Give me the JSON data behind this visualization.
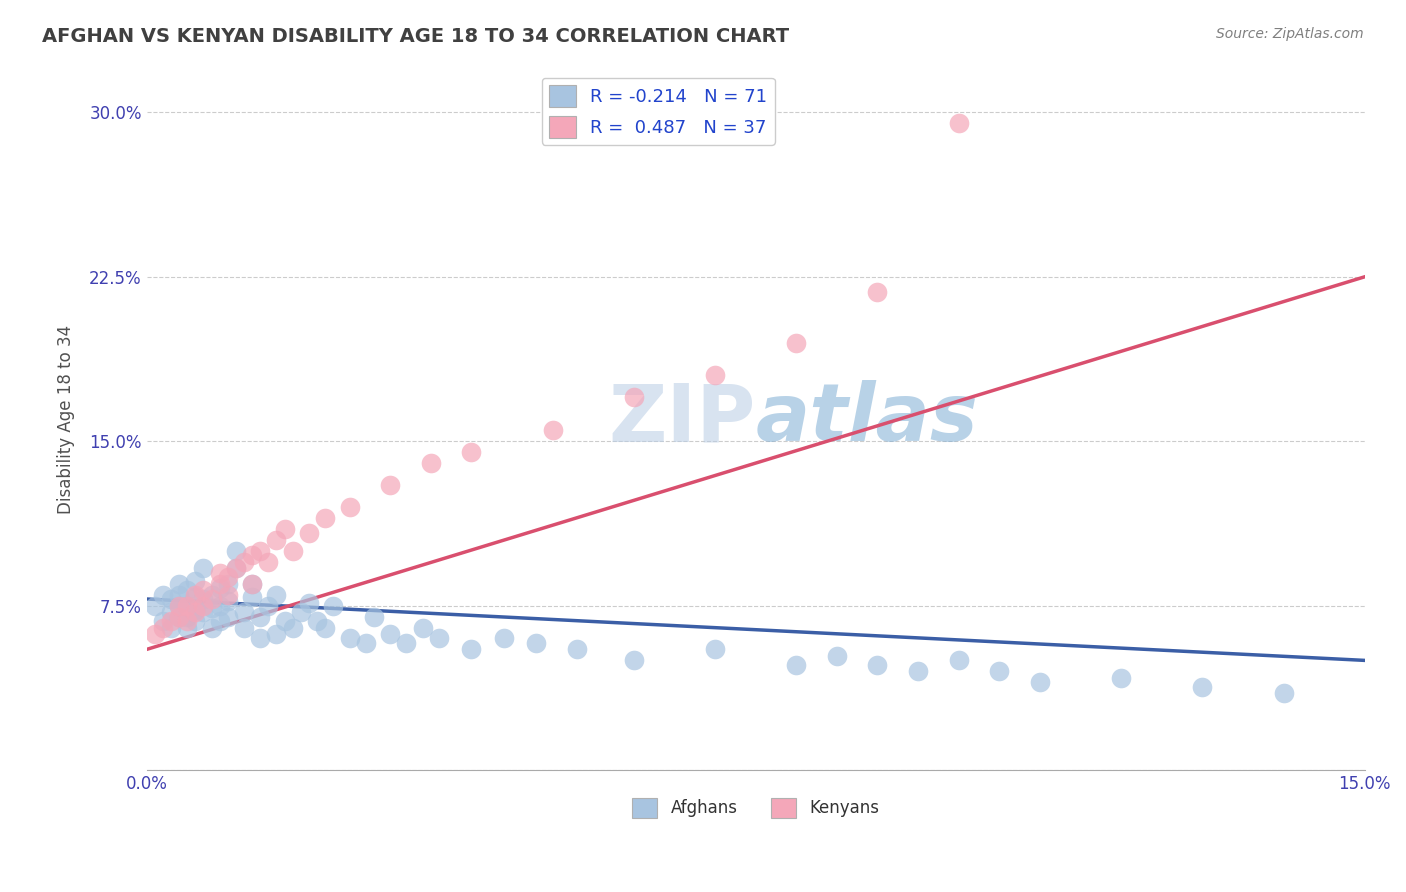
{
  "title": "AFGHAN VS KENYAN DISABILITY AGE 18 TO 34 CORRELATION CHART",
  "source": "Source: ZipAtlas.com",
  "ylabel_label": "Disability Age 18 to 34",
  "xlim": [
    0.0,
    0.15
  ],
  "ylim": [
    0.0,
    0.32
  ],
  "xticks": [
    0.0,
    0.025,
    0.05,
    0.075,
    0.1,
    0.125,
    0.15
  ],
  "yticks": [
    0.0,
    0.075,
    0.15,
    0.225,
    0.3
  ],
  "ytick_labels": [
    "",
    "7.5%",
    "15.0%",
    "22.5%",
    "30.0%"
  ],
  "xtick_labels": [
    "0.0%",
    "",
    "",
    "",
    "",
    "",
    "15.0%"
  ],
  "legend_labels": [
    "Afghans",
    "Kenyans"
  ],
  "afghan_R": -0.214,
  "afghan_N": 71,
  "kenyan_R": 0.487,
  "kenyan_N": 37,
  "afghan_color": "#a8c4e0",
  "afghan_line_color": "#3b5ea6",
  "kenyan_color": "#f4a7b9",
  "kenyan_line_color": "#d94f6e",
  "watermark": "ZIPatlas",
  "title_color": "#404040",
  "title_fontsize": 14,
  "afghan_scatter_x": [
    0.001,
    0.002,
    0.002,
    0.003,
    0.003,
    0.003,
    0.004,
    0.004,
    0.004,
    0.004,
    0.005,
    0.005,
    0.005,
    0.005,
    0.006,
    0.006,
    0.006,
    0.006,
    0.007,
    0.007,
    0.007,
    0.008,
    0.008,
    0.008,
    0.009,
    0.009,
    0.009,
    0.01,
    0.01,
    0.01,
    0.011,
    0.011,
    0.012,
    0.012,
    0.013,
    0.013,
    0.014,
    0.014,
    0.015,
    0.016,
    0.016,
    0.017,
    0.018,
    0.019,
    0.02,
    0.021,
    0.022,
    0.023,
    0.025,
    0.027,
    0.028,
    0.03,
    0.032,
    0.034,
    0.036,
    0.04,
    0.044,
    0.048,
    0.053,
    0.06,
    0.07,
    0.08,
    0.085,
    0.09,
    0.095,
    0.1,
    0.105,
    0.11,
    0.12,
    0.13,
    0.14
  ],
  "afghan_scatter_y": [
    0.075,
    0.068,
    0.08,
    0.072,
    0.078,
    0.065,
    0.07,
    0.075,
    0.08,
    0.085,
    0.065,
    0.07,
    0.075,
    0.082,
    0.068,
    0.073,
    0.079,
    0.086,
    0.072,
    0.078,
    0.092,
    0.065,
    0.074,
    0.08,
    0.068,
    0.075,
    0.083,
    0.07,
    0.077,
    0.085,
    0.092,
    0.1,
    0.065,
    0.072,
    0.079,
    0.085,
    0.06,
    0.07,
    0.075,
    0.08,
    0.062,
    0.068,
    0.065,
    0.072,
    0.076,
    0.068,
    0.065,
    0.075,
    0.06,
    0.058,
    0.07,
    0.062,
    0.058,
    0.065,
    0.06,
    0.055,
    0.06,
    0.058,
    0.055,
    0.05,
    0.055,
    0.048,
    0.052,
    0.048,
    0.045,
    0.05,
    0.045,
    0.04,
    0.042,
    0.038,
    0.035
  ],
  "kenyan_scatter_x": [
    0.001,
    0.002,
    0.003,
    0.004,
    0.004,
    0.005,
    0.005,
    0.006,
    0.006,
    0.007,
    0.007,
    0.008,
    0.009,
    0.009,
    0.01,
    0.01,
    0.011,
    0.012,
    0.013,
    0.013,
    0.014,
    0.015,
    0.016,
    0.017,
    0.018,
    0.02,
    0.022,
    0.025,
    0.03,
    0.035,
    0.04,
    0.05,
    0.06,
    0.07,
    0.08,
    0.09,
    0.1
  ],
  "kenyan_scatter_y": [
    0.062,
    0.065,
    0.068,
    0.07,
    0.075,
    0.068,
    0.075,
    0.072,
    0.08,
    0.075,
    0.082,
    0.078,
    0.085,
    0.09,
    0.08,
    0.088,
    0.092,
    0.095,
    0.085,
    0.098,
    0.1,
    0.095,
    0.105,
    0.11,
    0.1,
    0.108,
    0.115,
    0.12,
    0.13,
    0.14,
    0.145,
    0.155,
    0.17,
    0.18,
    0.195,
    0.218,
    0.295
  ]
}
